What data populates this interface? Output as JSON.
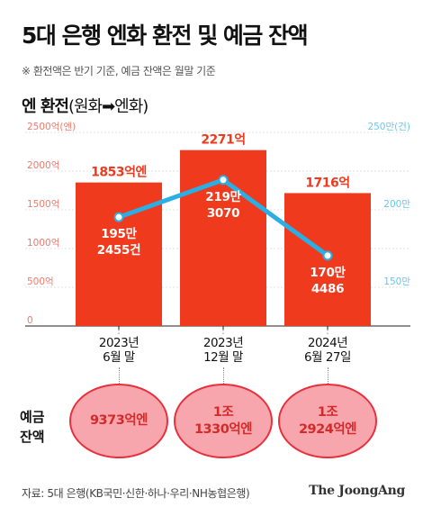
{
  "title": "5대 은행 엔화 환전 및 예금 잔액",
  "subtitle": "※ 환전액은 반기 기준, 예금 잔액은 월말 기준",
  "section": {
    "bold": "엔 환전",
    "rest": "(원화➡엔화)"
  },
  "colors": {
    "bar": "#f03a1e",
    "line": "#2baee3",
    "bar_label": "#ee3b20",
    "left_axis": "#f07a6a",
    "right_axis": "#6cc6ea",
    "bubble_fill": "#f7a6ad",
    "bubble_border": "#e8303c"
  },
  "chart_data": {
    "type": "bar",
    "categories": [
      "2023년 6월 말",
      "2023년 12월 말",
      "2024년 6월 27일"
    ],
    "category_lines": [
      [
        "2023년",
        "6월 말"
      ],
      [
        "2023년",
        "12월 말"
      ],
      [
        "2024년",
        "6월 27일"
      ]
    ],
    "series": [
      {
        "name": "엔 환전",
        "type": "bar",
        "axis": "left",
        "values": [
          1853,
          2271,
          1716
        ],
        "labels": [
          "1853억엔",
          "2271억",
          "1716억"
        ]
      },
      {
        "name": "건수",
        "type": "line",
        "axis": "right",
        "values": [
          195.2455,
          219.307,
          170.4486
        ],
        "labels": [
          [
            "195만",
            "2455건"
          ],
          [
            "219만",
            "3070"
          ],
          [
            "170만",
            "4486"
          ]
        ]
      }
    ],
    "left_axis": {
      "ticks": [
        0,
        500,
        1000,
        1500,
        2000,
        2500
      ],
      "tick_labels": [
        "0",
        "500억",
        "1000억",
        "1500억",
        "2000억",
        "2500억(엔)"
      ],
      "range": [
        0,
        2500
      ]
    },
    "right_axis": {
      "ticks": [
        150,
        200,
        250
      ],
      "tick_labels": [
        "150만",
        "200만",
        "250만(건)"
      ],
      "range": [
        125,
        250
      ]
    }
  },
  "deposit": {
    "label": [
      "예금",
      "잔액"
    ],
    "values": [
      [
        "9373억엔"
      ],
      [
        "1조",
        "1330억엔"
      ],
      [
        "1조",
        "2924억엔"
      ]
    ]
  },
  "source": "자료: 5대 은행(KB국민·신한·하나·우리·NH농협은행)",
  "logo": "The JoongAng"
}
